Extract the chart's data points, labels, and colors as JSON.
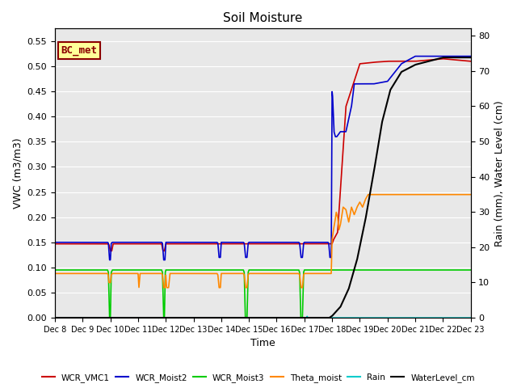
{
  "title": "Soil Moisture",
  "xlabel": "Time",
  "ylabel_left": "VWC (m3/m3)",
  "ylabel_right": "Rain (mm), Water Level (cm)",
  "ylim_left": [
    0.0,
    0.575
  ],
  "ylim_right": [
    0,
    82
  ],
  "yticks_left": [
    0.0,
    0.05,
    0.1,
    0.15,
    0.2,
    0.25,
    0.3,
    0.35,
    0.4,
    0.45,
    0.5,
    0.55
  ],
  "yticks_right": [
    0,
    10,
    20,
    30,
    40,
    50,
    60,
    70,
    80
  ],
  "bg_color": "#e8e8e8",
  "annotation_text": "BC_met",
  "annotation_color": "#8b0000",
  "annotation_bg": "#ffff99",
  "series": {
    "WCR_VMC1": {
      "color": "#cc0000",
      "lw": 1.2
    },
    "WCR_Moist2": {
      "color": "#0000cc",
      "lw": 1.2
    },
    "WCR_Moist3": {
      "color": "#00cc00",
      "lw": 1.2
    },
    "Theta_moist": {
      "color": "#ff8800",
      "lw": 1.2
    },
    "Rain": {
      "color": "#00cccc",
      "lw": 1.2
    },
    "WaterLevel_cm": {
      "color": "#000000",
      "lw": 1.5
    }
  }
}
